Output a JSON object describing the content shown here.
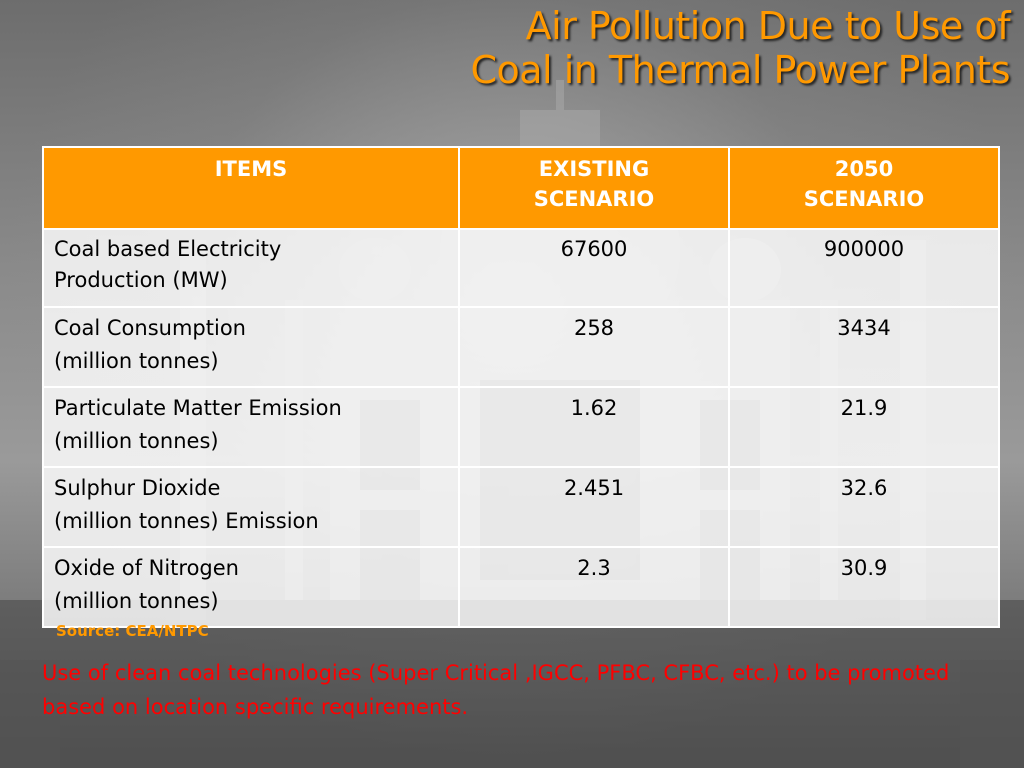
{
  "title": {
    "line1": "Air Pollution Due to Use of",
    "line2": "Coal in Thermal Power Plants"
  },
  "table": {
    "headers": [
      "ITEMS",
      "EXISTING SCENARIO",
      "2050 SCENARIO"
    ],
    "header_lines": {
      "existing": [
        "EXISTING",
        "SCENARIO"
      ],
      "future": [
        "2050",
        "SCENARIO"
      ]
    },
    "rows": [
      {
        "item_lines": [
          "Coal based Electricity",
          "Production  (MW)"
        ],
        "existing": "67600",
        "future": "900000"
      },
      {
        "item_lines": [
          "Coal Consumption",
          "(million tonnes)"
        ],
        "existing": "258",
        "future": "3434"
      },
      {
        "item_lines": [
          "Particulate Matter Emission",
          "(million tonnes)"
        ],
        "existing": "1.62",
        "future": "21.9"
      },
      {
        "item_lines": [
          "Sulphur Dioxide",
          "(million tonnes) Emission"
        ],
        "existing": "2.451",
        "future": "32.6"
      },
      {
        "item_lines": [
          "Oxide of Nitrogen",
          "(million tonnes)"
        ],
        "existing": "2.3",
        "future": "30.9"
      }
    ]
  },
  "source": "Source: CEA/NTPC",
  "note": "Use of clean coal technologies (Super Critical ,IGCC, PFBC, CFBC, etc.) to be promoted based on location specific requirements.",
  "colors": {
    "accent": "#ff9900",
    "note": "#ff0000",
    "header_text": "#ffffff"
  }
}
